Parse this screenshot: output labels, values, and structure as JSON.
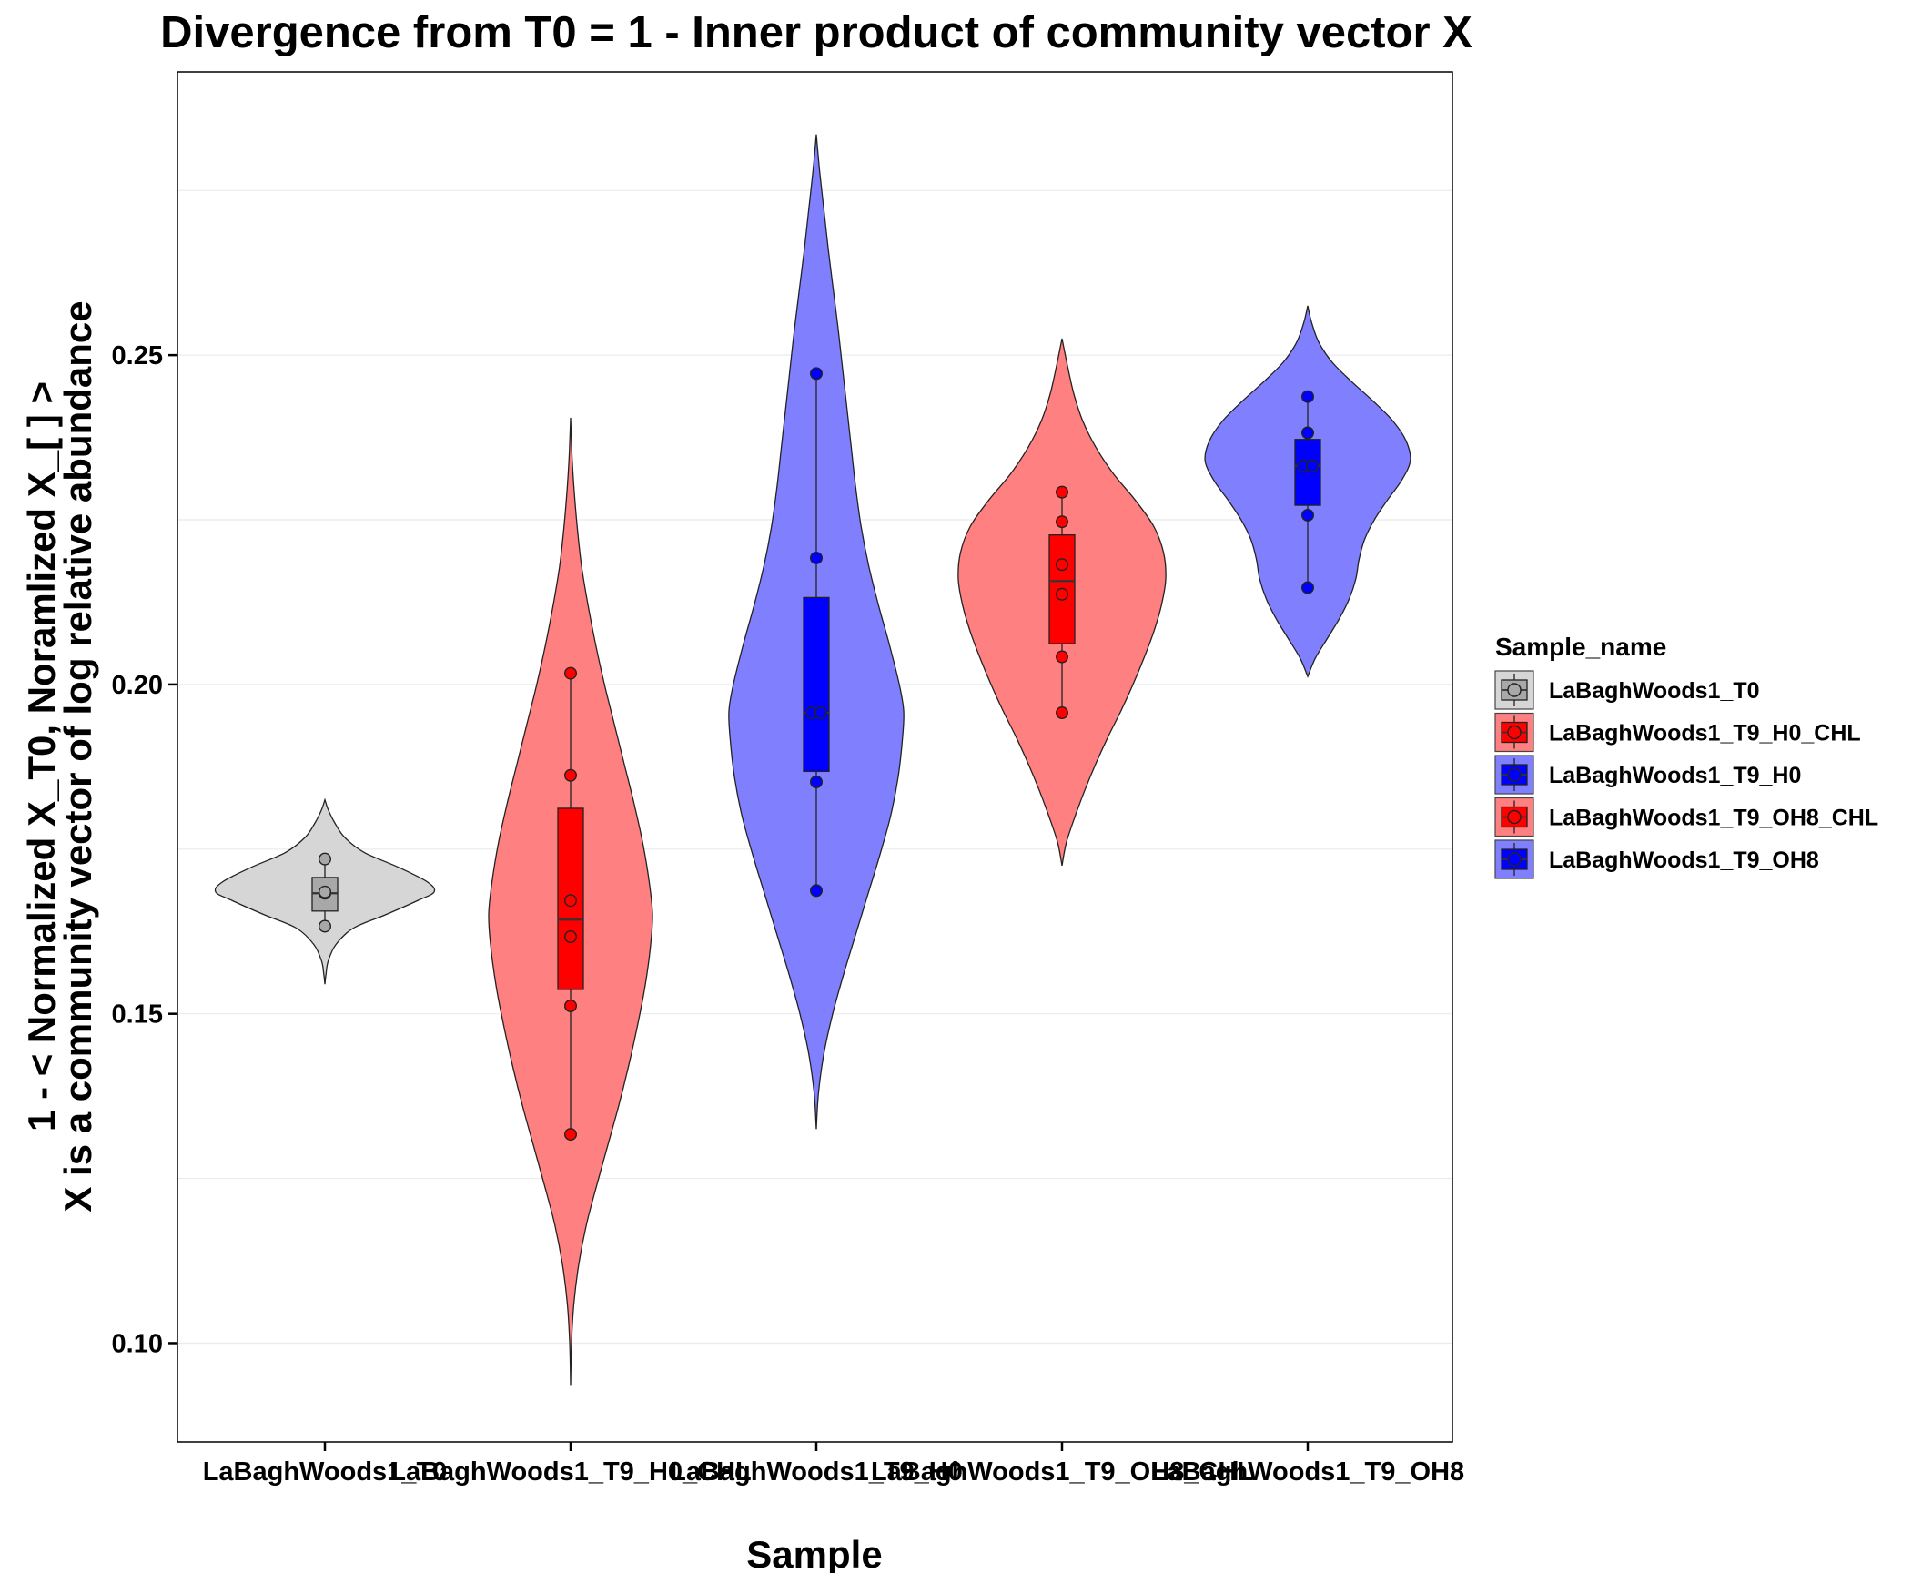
{
  "chart_data": {
    "type": "violin",
    "title": "Divergence from T0 = 1 - Inner product of community vector X",
    "xlabel": "Sample",
    "ylabel_lines": [
      "1 - < Normalized X_T0, Noramlized X_[  ] >",
      "X is a community vector of log relative abundance"
    ],
    "ylim": [
      0.085,
      0.293
    ],
    "yticks": [
      0.1,
      0.15,
      0.2,
      0.25
    ],
    "ytick_labels": [
      "0.10",
      "0.15",
      "0.20",
      "0.25"
    ],
    "grid": "horizontal",
    "legend_title": "Sample_name",
    "legend_position": "right",
    "categories": [
      "LaBaghWoods1_T0",
      "LaBaghWoods1_T9_H0_CHL",
      "LaBaghWoods1_T9_H0",
      "LaBaghWoods1_T9_OH8_CHL",
      "LaBaghWoods1_T9_OH8"
    ],
    "series": [
      {
        "name": "LaBaghWoods1_T0",
        "violin_color": "#d6d6d6",
        "box_color": "#a8a8a8",
        "point_color": "#a8a8a8",
        "violin_range": [
          0.1545,
          0.1825
        ],
        "violin_halfwidth": [
          [
            0.1545,
            0
          ],
          [
            0.156,
            0.01
          ],
          [
            0.158,
            0.03
          ],
          [
            0.1605,
            0.1
          ],
          [
            0.163,
            0.26
          ],
          [
            0.165,
            0.55
          ],
          [
            0.1672,
            0.85
          ],
          [
            0.1685,
            1.0
          ],
          [
            0.17,
            0.94
          ],
          [
            0.1722,
            0.68
          ],
          [
            0.1745,
            0.36
          ],
          [
            0.1768,
            0.18
          ],
          [
            0.179,
            0.09
          ],
          [
            0.181,
            0.03
          ],
          [
            0.1825,
            0
          ]
        ],
        "box": {
          "q1": 0.1656,
          "median": 0.1683,
          "q3": 0.1707,
          "whisker_low": 0.1633,
          "whisker_high": 0.1735
        },
        "points": [
          0.1633,
          0.1683,
          0.1685,
          0.1735
        ]
      },
      {
        "name": "LaBaghWoods1_T9_H0_CHL",
        "violin_color": "#ff8080",
        "box_color": "#ff0000",
        "point_color": "#ff0000",
        "violin_range": [
          0.0935,
          0.2405
        ],
        "violin_halfwidth": [
          [
            0.0935,
            0
          ],
          [
            0.1,
            0.008
          ],
          [
            0.106,
            0.03
          ],
          [
            0.112,
            0.075
          ],
          [
            0.118,
            0.145
          ],
          [
            0.124,
            0.24
          ],
          [
            0.13,
            0.34
          ],
          [
            0.136,
            0.44
          ],
          [
            0.142,
            0.53
          ],
          [
            0.148,
            0.61
          ],
          [
            0.154,
            0.68
          ],
          [
            0.16,
            0.73
          ],
          [
            0.165,
            0.75
          ],
          [
            0.17,
            0.72
          ],
          [
            0.176,
            0.66
          ],
          [
            0.182,
            0.58
          ],
          [
            0.188,
            0.49
          ],
          [
            0.194,
            0.4
          ],
          [
            0.2,
            0.31
          ],
          [
            0.206,
            0.23
          ],
          [
            0.212,
            0.16
          ],
          [
            0.218,
            0.1
          ],
          [
            0.224,
            0.06
          ],
          [
            0.23,
            0.03
          ],
          [
            0.235,
            0.012
          ],
          [
            0.2405,
            0
          ]
        ],
        "box": {
          "q1": 0.1537,
          "median": 0.1643,
          "q3": 0.1812,
          "whisker_low": 0.1317,
          "whisker_high": 0.2017
        },
        "points": [
          0.2017,
          0.1862,
          0.1672,
          0.1617,
          0.1512,
          0.1317
        ]
      },
      {
        "name": "LaBaghWoods1_T9_H0",
        "violin_color": "#8080ff",
        "box_color": "#0000ff",
        "point_color": "#0000ff",
        "violin_range": [
          0.1325,
          0.2835
        ],
        "violin_halfwidth": [
          [
            0.1325,
            0
          ],
          [
            0.138,
            0.02
          ],
          [
            0.144,
            0.07
          ],
          [
            0.15,
            0.15
          ],
          [
            0.156,
            0.25
          ],
          [
            0.162,
            0.36
          ],
          [
            0.168,
            0.47
          ],
          [
            0.174,
            0.58
          ],
          [
            0.18,
            0.68
          ],
          [
            0.186,
            0.75
          ],
          [
            0.192,
            0.79
          ],
          [
            0.196,
            0.8
          ],
          [
            0.2,
            0.76
          ],
          [
            0.206,
            0.67
          ],
          [
            0.212,
            0.57
          ],
          [
            0.218,
            0.48
          ],
          [
            0.224,
            0.41
          ],
          [
            0.23,
            0.36
          ],
          [
            0.236,
            0.32
          ],
          [
            0.242,
            0.28
          ],
          [
            0.248,
            0.24
          ],
          [
            0.254,
            0.2
          ],
          [
            0.26,
            0.155
          ],
          [
            0.266,
            0.11
          ],
          [
            0.272,
            0.07
          ],
          [
            0.278,
            0.03
          ],
          [
            0.2835,
            0
          ]
        ],
        "box": {
          "q1": 0.1868,
          "median": 0.1957,
          "q3": 0.2132,
          "whisker_low": 0.1687,
          "whisker_high": 0.2472
        },
        "points": [
          0.2472,
          0.2192,
          0.1957,
          0.1957,
          0.1852,
          0.1687
        ]
      },
      {
        "name": "LaBaghWoods1_T9_OH8_CHL",
        "violin_color": "#ff8080",
        "box_color": "#ff0000",
        "point_color": "#ff0000",
        "violin_range": [
          0.1725,
          0.2525
        ],
        "violin_halfwidth": [
          [
            0.1725,
            0
          ],
          [
            0.176,
            0.04
          ],
          [
            0.18,
            0.12
          ],
          [
            0.184,
            0.21
          ],
          [
            0.188,
            0.31
          ],
          [
            0.192,
            0.42
          ],
          [
            0.196,
            0.54
          ],
          [
            0.2,
            0.65
          ],
          [
            0.204,
            0.75
          ],
          [
            0.208,
            0.84
          ],
          [
            0.212,
            0.91
          ],
          [
            0.216,
            0.95
          ],
          [
            0.22,
            0.93
          ],
          [
            0.224,
            0.84
          ],
          [
            0.228,
            0.67
          ],
          [
            0.232,
            0.47
          ],
          [
            0.236,
            0.31
          ],
          [
            0.24,
            0.19
          ],
          [
            0.244,
            0.11
          ],
          [
            0.248,
            0.055
          ],
          [
            0.2525,
            0
          ]
        ],
        "box": {
          "q1": 0.2062,
          "median": 0.2157,
          "q3": 0.2227,
          "whisker_low": 0.1957,
          "whisker_high": 0.2292
        },
        "points": [
          0.2292,
          0.2247,
          0.2182,
          0.2137,
          0.2042,
          0.1957
        ]
      },
      {
        "name": "LaBaghWoods1_T9_OH8",
        "violin_color": "#8080ff",
        "box_color": "#0000ff",
        "point_color": "#0000ff",
        "violin_range": [
          0.2012,
          0.2575
        ],
        "violin_halfwidth": [
          [
            0.2012,
            0
          ],
          [
            0.204,
            0.07
          ],
          [
            0.207,
            0.18
          ],
          [
            0.21,
            0.29
          ],
          [
            0.213,
            0.38
          ],
          [
            0.216,
            0.44
          ],
          [
            0.219,
            0.47
          ],
          [
            0.222,
            0.52
          ],
          [
            0.225,
            0.61
          ],
          [
            0.228,
            0.73
          ],
          [
            0.231,
            0.86
          ],
          [
            0.234,
            0.94
          ],
          [
            0.237,
            0.9
          ],
          [
            0.24,
            0.78
          ],
          [
            0.243,
            0.6
          ],
          [
            0.246,
            0.4
          ],
          [
            0.249,
            0.22
          ],
          [
            0.252,
            0.1
          ],
          [
            0.255,
            0.035
          ],
          [
            0.2575,
            0
          ]
        ],
        "box": {
          "q1": 0.2272,
          "median": 0.2332,
          "q3": 0.2372,
          "whisker_low": 0.2147,
          "whisker_high": 0.2437
        },
        "points": [
          0.2437,
          0.2382,
          0.2332,
          0.2332,
          0.2257,
          0.2147
        ]
      }
    ]
  }
}
